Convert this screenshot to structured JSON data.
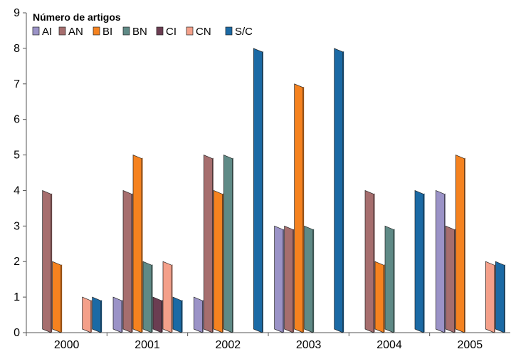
{
  "chart_data": {
    "type": "bar",
    "title": "",
    "xlabel": "",
    "ylabel": "",
    "legend_title": "Número de artigos",
    "legend_position": "top-left",
    "grid": false,
    "ylim": [
      0,
      9
    ],
    "yticks": [
      "0",
      "1",
      "2",
      "3",
      "4",
      "5",
      "6",
      "7",
      "8",
      "9"
    ],
    "categories": [
      "2000",
      "2001",
      "2002",
      "2003",
      "2004",
      "2005"
    ],
    "series": [
      {
        "name": "AI",
        "color": "#9b93c7",
        "values": [
          0,
          1,
          1,
          3,
          0,
          4
        ]
      },
      {
        "name": "AN",
        "color": "#a66e6e",
        "values": [
          4,
          4,
          5,
          3,
          4,
          3
        ]
      },
      {
        "name": "BI",
        "color": "#f5821f",
        "values": [
          2,
          5,
          4,
          7,
          2,
          5
        ]
      },
      {
        "name": "BN",
        "color": "#5f8a86",
        "values": [
          0,
          2,
          5,
          3,
          3,
          0
        ]
      },
      {
        "name": "CI",
        "color": "#6b3d52",
        "values": [
          0,
          1,
          0,
          0,
          0,
          0
        ]
      },
      {
        "name": "CN",
        "color": "#f4a08a",
        "values": [
          1,
          2,
          0,
          0,
          0,
          2
        ]
      },
      {
        "name": "S/C",
        "color": "#1b6aa5",
        "values": [
          1,
          1,
          8,
          8,
          4,
          2
        ]
      }
    ]
  }
}
